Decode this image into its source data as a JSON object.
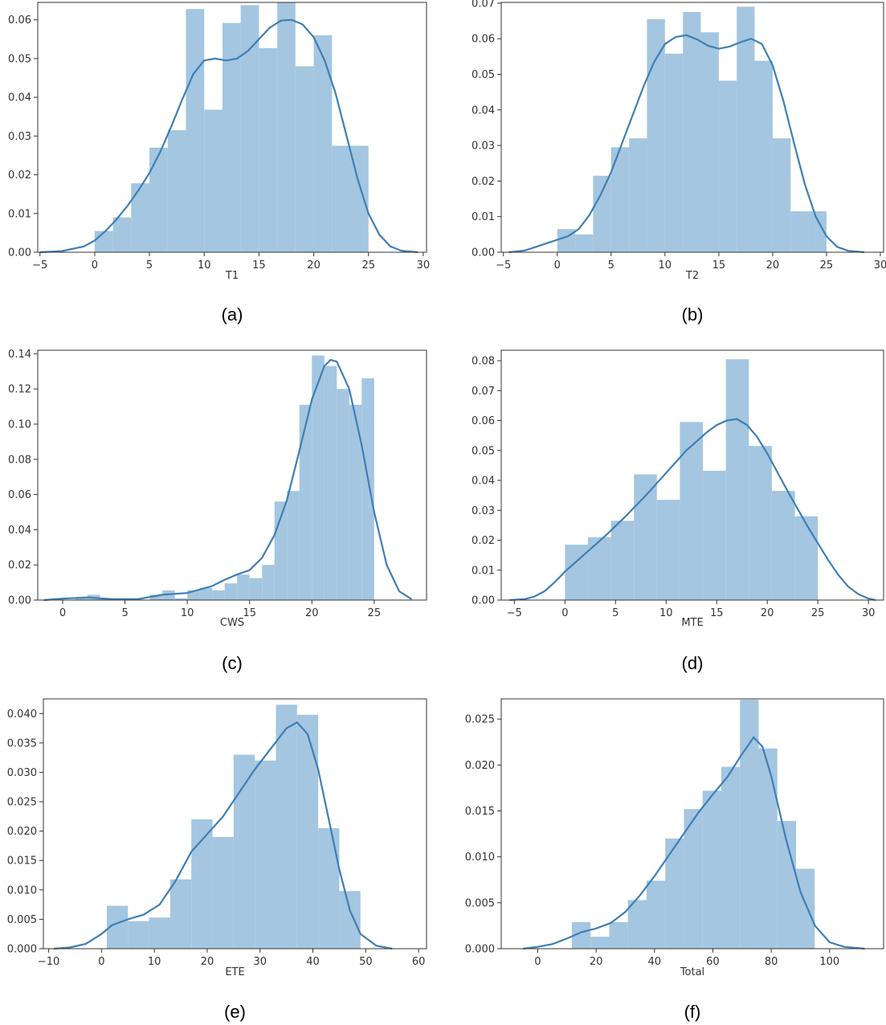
{
  "chart_data": [
    {
      "type": "bar",
      "caption": "(a)",
      "xlabel": "T1",
      "ylabel": "",
      "xlim": [
        -5.2,
        30.3
      ],
      "ylim": [
        0,
        0.0645
      ],
      "xticks": [
        -5,
        0,
        5,
        10,
        15,
        20,
        25,
        30
      ],
      "yticks": [
        0,
        0.01,
        0.02,
        0.03,
        0.04,
        0.05,
        0.06
      ],
      "ytick_labels": [
        "0.00",
        "0.01",
        "0.02",
        "0.03",
        "0.04",
        "0.05",
        "0.06"
      ],
      "bins": [
        [
          0.0,
          1.67,
          0.0055
        ],
        [
          1.67,
          3.33,
          0.009
        ],
        [
          3.33,
          5.0,
          0.0178
        ],
        [
          5.0,
          6.67,
          0.027
        ],
        [
          6.67,
          8.33,
          0.0315
        ],
        [
          8.33,
          10.0,
          0.0628
        ],
        [
          10.0,
          11.67,
          0.0368
        ],
        [
          11.67,
          13.33,
          0.0592
        ],
        [
          13.33,
          15.0,
          0.0638
        ],
        [
          15.0,
          16.67,
          0.0527
        ],
        [
          16.67,
          18.33,
          0.0645
        ],
        [
          18.33,
          20.0,
          0.048
        ],
        [
          20.0,
          21.67,
          0.056
        ],
        [
          21.67,
          23.33,
          0.0275
        ],
        [
          23.33,
          25.0,
          0.0275
        ]
      ],
      "kde": [
        [
          -5,
          0.0
        ],
        [
          -3,
          0.0003
        ],
        [
          -1,
          0.0015
        ],
        [
          0,
          0.003
        ],
        [
          1,
          0.0055
        ],
        [
          2,
          0.0085
        ],
        [
          3,
          0.012
        ],
        [
          4,
          0.016
        ],
        [
          5,
          0.0205
        ],
        [
          6,
          0.026
        ],
        [
          7,
          0.0325
        ],
        [
          8,
          0.0395
        ],
        [
          9,
          0.046
        ],
        [
          10,
          0.0495
        ],
        [
          11,
          0.05
        ],
        [
          12,
          0.0495
        ],
        [
          13,
          0.05
        ],
        [
          14,
          0.052
        ],
        [
          15,
          0.055
        ],
        [
          16,
          0.058
        ],
        [
          17,
          0.0598
        ],
        [
          18,
          0.06
        ],
        [
          19,
          0.0588
        ],
        [
          20,
          0.0555
        ],
        [
          21,
          0.0495
        ],
        [
          22,
          0.041
        ],
        [
          23,
          0.03
        ],
        [
          24,
          0.019
        ],
        [
          25,
          0.01
        ],
        [
          26,
          0.0045
        ],
        [
          27,
          0.0015
        ],
        [
          28,
          0.0004
        ],
        [
          29.5,
          0.0
        ]
      ]
    },
    {
      "type": "bar",
      "caption": "(b)",
      "xlabel": "T2",
      "ylabel": "",
      "xlim": [
        -5.2,
        30.3
      ],
      "ylim": [
        0,
        0.0702
      ],
      "xticks": [
        -5,
        0,
        5,
        10,
        15,
        20,
        25,
        30
      ],
      "yticks": [
        0,
        0.01,
        0.02,
        0.03,
        0.04,
        0.05,
        0.06,
        0.07
      ],
      "ytick_labels": [
        "0.00",
        "0.01",
        "0.02",
        "0.03",
        "0.04",
        "0.05",
        "0.06",
        "0.07"
      ],
      "bins": [
        [
          0.0,
          1.67,
          0.0065
        ],
        [
          1.67,
          3.33,
          0.005
        ],
        [
          3.33,
          5.0,
          0.0215
        ],
        [
          5.0,
          6.67,
          0.0295
        ],
        [
          6.67,
          8.33,
          0.032
        ],
        [
          8.33,
          10.0,
          0.0655
        ],
        [
          10.0,
          11.67,
          0.0558
        ],
        [
          11.67,
          13.33,
          0.0675
        ],
        [
          13.33,
          15.0,
          0.0618
        ],
        [
          15.0,
          16.67,
          0.0482
        ],
        [
          16.67,
          18.33,
          0.069
        ],
        [
          18.33,
          20.0,
          0.0538
        ],
        [
          20.0,
          21.67,
          0.032
        ],
        [
          21.67,
          23.33,
          0.0115
        ],
        [
          23.33,
          25.0,
          0.0115
        ]
      ],
      "kde": [
        [
          -4.5,
          0.0
        ],
        [
          -3,
          0.0005
        ],
        [
          -2,
          0.0015
        ],
        [
          -1,
          0.0025
        ],
        [
          0,
          0.0035
        ],
        [
          1,
          0.0045
        ],
        [
          2,
          0.0065
        ],
        [
          3,
          0.0105
        ],
        [
          4,
          0.016
        ],
        [
          5,
          0.0225
        ],
        [
          6,
          0.0305
        ],
        [
          7,
          0.0385
        ],
        [
          8,
          0.0465
        ],
        [
          9,
          0.0535
        ],
        [
          10,
          0.0585
        ],
        [
          11,
          0.0605
        ],
        [
          12,
          0.061
        ],
        [
          13,
          0.0598
        ],
        [
          14,
          0.058
        ],
        [
          15,
          0.0572
        ],
        [
          16,
          0.0578
        ],
        [
          17,
          0.059
        ],
        [
          18,
          0.06
        ],
        [
          19,
          0.0585
        ],
        [
          20,
          0.0525
        ],
        [
          21,
          0.0425
        ],
        [
          22,
          0.0305
        ],
        [
          23,
          0.019
        ],
        [
          24,
          0.01
        ],
        [
          25,
          0.0045
        ],
        [
          26,
          0.0015
        ],
        [
          27,
          0.0004
        ],
        [
          28.5,
          0.0
        ]
      ]
    },
    {
      "type": "bar",
      "caption": "(c)",
      "xlabel": "CWS",
      "ylabel": "",
      "xlim": [
        -2.0,
        29.2
      ],
      "ylim": [
        0,
        0.142
      ],
      "xticks": [
        0,
        5,
        10,
        15,
        20,
        25
      ],
      "yticks": [
        0,
        0.02,
        0.04,
        0.06,
        0.08,
        0.1,
        0.12,
        0.14
      ],
      "ytick_labels": [
        "0.00",
        "0.02",
        "0.04",
        "0.06",
        "0.08",
        "0.10",
        "0.12",
        "0.14"
      ],
      "bins": [
        [
          0.0,
          1.0,
          0.0
        ],
        [
          1.0,
          2.0,
          0.001
        ],
        [
          2.0,
          3.0,
          0.003
        ],
        [
          3.0,
          4.0,
          0.001
        ],
        [
          4.0,
          7.0,
          0.0
        ],
        [
          7.0,
          8.0,
          0.003
        ],
        [
          8.0,
          9.0,
          0.0055
        ],
        [
          9.0,
          10.0,
          0.001
        ],
        [
          10.0,
          11.0,
          0.0055
        ],
        [
          11.0,
          12.0,
          0.007
        ],
        [
          12.0,
          13.0,
          0.0055
        ],
        [
          13.0,
          14.0,
          0.0095
        ],
        [
          14.0,
          15.0,
          0.0145
        ],
        [
          15.0,
          16.0,
          0.0125
        ],
        [
          16.0,
          17.0,
          0.02
        ],
        [
          17.0,
          18.0,
          0.056
        ],
        [
          18.0,
          19.0,
          0.062
        ],
        [
          19.0,
          20.0,
          0.111
        ],
        [
          20.0,
          21.0,
          0.139
        ],
        [
          21.0,
          22.0,
          0.133
        ],
        [
          22.0,
          23.0,
          0.12
        ],
        [
          23.0,
          24.0,
          0.111
        ],
        [
          24.0,
          25.0,
          0.126
        ]
      ],
      "kde": [
        [
          -1.5,
          0.0
        ],
        [
          0,
          0.0008
        ],
        [
          2,
          0.0015
        ],
        [
          4,
          0.0005
        ],
        [
          6,
          0.0005
        ],
        [
          8,
          0.003
        ],
        [
          10,
          0.004
        ],
        [
          12,
          0.008
        ],
        [
          13,
          0.0115
        ],
        [
          14,
          0.0145
        ],
        [
          15,
          0.017
        ],
        [
          16,
          0.024
        ],
        [
          17,
          0.037
        ],
        [
          18,
          0.057
        ],
        [
          19,
          0.085
        ],
        [
          20,
          0.114
        ],
        [
          21,
          0.133
        ],
        [
          21.5,
          0.1365
        ],
        [
          22,
          0.1355
        ],
        [
          23,
          0.12
        ],
        [
          24,
          0.088
        ],
        [
          25,
          0.05
        ],
        [
          26,
          0.02
        ],
        [
          27,
          0.005
        ],
        [
          28,
          0.0005
        ]
      ]
    },
    {
      "type": "bar",
      "caption": "(d)",
      "xlabel": "MTE",
      "ylabel": "",
      "xlim": [
        -6.3,
        31.5
      ],
      "ylim": [
        0,
        0.0835
      ],
      "xticks": [
        -5,
        0,
        5,
        10,
        15,
        20,
        25,
        30
      ],
      "yticks": [
        0,
        0.01,
        0.02,
        0.03,
        0.04,
        0.05,
        0.06,
        0.07,
        0.08
      ],
      "ytick_labels": [
        "0.00",
        "0.01",
        "0.02",
        "0.03",
        "0.04",
        "0.05",
        "0.06",
        "0.07",
        "0.08"
      ],
      "bins": [
        [
          0.0,
          2.27,
          0.0185
        ],
        [
          2.27,
          4.55,
          0.021
        ],
        [
          4.55,
          6.82,
          0.0265
        ],
        [
          6.82,
          9.09,
          0.042
        ],
        [
          9.09,
          11.36,
          0.0335
        ],
        [
          11.36,
          13.64,
          0.0595
        ],
        [
          13.64,
          15.91,
          0.0432
        ],
        [
          15.91,
          18.18,
          0.0805
        ],
        [
          18.18,
          20.45,
          0.0515
        ],
        [
          20.45,
          22.73,
          0.0365
        ],
        [
          22.73,
          25.0,
          0.028
        ]
      ],
      "kde": [
        [
          -5.5,
          0.0
        ],
        [
          -4,
          0.0003
        ],
        [
          -3,
          0.0012
        ],
        [
          -2,
          0.003
        ],
        [
          -1,
          0.006
        ],
        [
          0,
          0.0095
        ],
        [
          2,
          0.0155
        ],
        [
          4,
          0.0215
        ],
        [
          6,
          0.028
        ],
        [
          8,
          0.035
        ],
        [
          10,
          0.0425
        ],
        [
          12,
          0.05
        ],
        [
          14,
          0.056
        ],
        [
          15,
          0.0585
        ],
        [
          16,
          0.06
        ],
        [
          17,
          0.0605
        ],
        [
          18,
          0.0585
        ],
        [
          19,
          0.0545
        ],
        [
          20,
          0.049
        ],
        [
          22,
          0.0365
        ],
        [
          24,
          0.0245
        ],
        [
          26,
          0.0135
        ],
        [
          27,
          0.0085
        ],
        [
          28,
          0.0045
        ],
        [
          29,
          0.002
        ],
        [
          30,
          0.0005
        ],
        [
          30.7,
          0.0
        ]
      ]
    },
    {
      "type": "bar",
      "caption": "(e)",
      "xlabel": "ETE",
      "ylabel": "",
      "xlim": [
        -11,
        61.5
      ],
      "ylim": [
        0,
        0.0425
      ],
      "xticks": [
        -10,
        0,
        10,
        20,
        30,
        40,
        50,
        60
      ],
      "yticks": [
        0,
        0.005,
        0.01,
        0.015,
        0.02,
        0.025,
        0.03,
        0.035,
        0.04
      ],
      "ytick_labels": [
        "0.000",
        "0.005",
        "0.010",
        "0.015",
        "0.020",
        "0.025",
        "0.030",
        "0.035",
        "0.040"
      ],
      "bins": [
        [
          1.0,
          5.0,
          0.0073
        ],
        [
          5.0,
          9.0,
          0.0047
        ],
        [
          9.0,
          13.0,
          0.0053
        ],
        [
          13.0,
          17.0,
          0.0118
        ],
        [
          17.0,
          21.0,
          0.022
        ],
        [
          21.0,
          25.0,
          0.019
        ],
        [
          25.0,
          29.0,
          0.033
        ],
        [
          29.0,
          33.0,
          0.032
        ],
        [
          33.0,
          37.0,
          0.0415
        ],
        [
          37.0,
          41.0,
          0.0398
        ],
        [
          41.0,
          45.0,
          0.0205
        ],
        [
          45.0,
          49.0,
          0.0098
        ]
      ],
      "kde": [
        [
          -9,
          0.0
        ],
        [
          -6,
          0.0002
        ],
        [
          -3,
          0.0008
        ],
        [
          0,
          0.0025
        ],
        [
          2,
          0.004
        ],
        [
          5,
          0.005
        ],
        [
          8,
          0.0058
        ],
        [
          11,
          0.0075
        ],
        [
          14,
          0.0115
        ],
        [
          17,
          0.0165
        ],
        [
          20,
          0.0195
        ],
        [
          23,
          0.0225
        ],
        [
          26,
          0.0265
        ],
        [
          29,
          0.0305
        ],
        [
          32,
          0.034
        ],
        [
          35,
          0.0375
        ],
        [
          37,
          0.0385
        ],
        [
          39,
          0.0365
        ],
        [
          41,
          0.0305
        ],
        [
          43,
          0.022
        ],
        [
          45,
          0.0135
        ],
        [
          47,
          0.0065
        ],
        [
          49,
          0.0025
        ],
        [
          52,
          0.0005
        ],
        [
          55,
          0.0
        ]
      ]
    },
    {
      "type": "bar",
      "caption": "(f)",
      "xlabel": "Total",
      "ylabel": "",
      "xlim": [
        -12.5,
        118.5
      ],
      "ylim": [
        0,
        0.0272
      ],
      "xticks": [
        0,
        20,
        40,
        60,
        80,
        100
      ],
      "yticks": [
        0,
        0.005,
        0.01,
        0.015,
        0.02,
        0.025
      ],
      "ytick_labels": [
        "0.000",
        "0.005",
        "0.010",
        "0.015",
        "0.020",
        "0.025"
      ],
      "bins": [
        [
          11.7,
          18.1,
          0.0029
        ],
        [
          18.1,
          24.5,
          0.0013
        ],
        [
          24.5,
          30.9,
          0.0029
        ],
        [
          30.9,
          37.3,
          0.0053
        ],
        [
          37.3,
          43.7,
          0.0074
        ],
        [
          43.7,
          50.1,
          0.012
        ],
        [
          50.1,
          56.5,
          0.0152
        ],
        [
          56.5,
          62.9,
          0.0172
        ],
        [
          62.9,
          69.3,
          0.0198
        ],
        [
          69.3,
          75.7,
          0.0271
        ],
        [
          75.7,
          82.1,
          0.0218
        ],
        [
          82.1,
          88.5,
          0.0139
        ],
        [
          88.5,
          94.9,
          0.0087
        ]
      ],
      "kde": [
        [
          -5,
          0.0
        ],
        [
          0,
          0.0002
        ],
        [
          5,
          0.0005
        ],
        [
          10,
          0.0011
        ],
        [
          15,
          0.0018
        ],
        [
          20,
          0.0022
        ],
        [
          25,
          0.0028
        ],
        [
          30,
          0.004
        ],
        [
          35,
          0.0058
        ],
        [
          40,
          0.0079
        ],
        [
          45,
          0.0102
        ],
        [
          50,
          0.0125
        ],
        [
          55,
          0.0148
        ],
        [
          60,
          0.0168
        ],
        [
          65,
          0.0187
        ],
        [
          70,
          0.0212
        ],
        [
          74,
          0.023
        ],
        [
          77,
          0.022
        ],
        [
          80,
          0.0188
        ],
        [
          85,
          0.012
        ],
        [
          90,
          0.0062
        ],
        [
          95,
          0.0025
        ],
        [
          100,
          0.0007
        ],
        [
          105,
          0.0002
        ],
        [
          112,
          0.0
        ]
      ]
    }
  ]
}
